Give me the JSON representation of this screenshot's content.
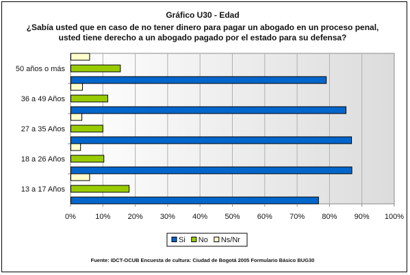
{
  "chart_data": {
    "type": "bar",
    "orientation": "horizontal",
    "title": "Gráfico U30 - Edad",
    "subtitle": "¿Sabía usted que en caso de no tener dinero para pagar un abogado en un proceso penal, usted tiene derecho a un abogado pagado por el estado para su defensa?",
    "subtitle_lines": [
      "¿Sabía usted que en caso de no tener dinero para pagar un abogado en un proceso penal,",
      "usted tiene derecho a un abogado pagado por el estado para su defensa?"
    ],
    "categories": [
      "50 años o más",
      "36 a 49 Años",
      "27 a 35 Años",
      "18 a 26 Años",
      "13 a 17 Años"
    ],
    "series": [
      {
        "name": "Ns/Nr",
        "color": "#FFFFCC",
        "values": [
          5.8,
          3.6,
          3.4,
          3.0,
          5.8
        ]
      },
      {
        "name": "No",
        "color": "#99CC00",
        "values": [
          15.3,
          11.4,
          9.9,
          10.2,
          18.0
        ]
      },
      {
        "name": "Si",
        "color": "#0066CC",
        "values": [
          78.9,
          85.0,
          86.7,
          86.8,
          76.5
        ]
      }
    ],
    "legend_order": [
      "Si",
      "No",
      "Ns/Nr"
    ],
    "legend_position": "bottom",
    "xlim": [
      0,
      100
    ],
    "xticks": [
      "0%",
      "10%",
      "20%",
      "30%",
      "40%",
      "50%",
      "60%",
      "70%",
      "80%",
      "90%",
      "100%"
    ],
    "grid": true,
    "source": "Fuente: IDCT-OCUB Encuesta de cultura: Ciudad de Bogotá 2005 Formulario Básico BUG30"
  }
}
